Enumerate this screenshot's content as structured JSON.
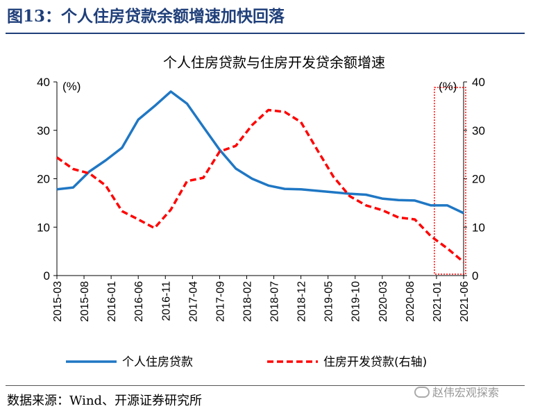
{
  "figure": {
    "title": "图13：个人住房贷款余额增速加快回落",
    "source": "数据来源：Wind、开源证券研究所",
    "watermark": "赵伟宏观探索"
  },
  "chart_data": {
    "type": "line",
    "title": "个人住房贷款与住房开发贷余额增速",
    "left_unit": "(%)",
    "right_unit": "(%)",
    "ylim": [
      0,
      40
    ],
    "y2lim": [
      0,
      40
    ],
    "yticks": [
      "0",
      "10",
      "20",
      "30",
      "40"
    ],
    "x_tick_labels": [
      "2015-03",
      "2015-08",
      "2016-01",
      "2016-06",
      "2016-11",
      "2017-04",
      "2017-09",
      "2018-02",
      "2018-07",
      "2018-12",
      "2019-05",
      "2019-10",
      "2020-03",
      "2020-08",
      "2021-01",
      "2021-06"
    ],
    "x": [
      "2015-03",
      "2015-06",
      "2015-09",
      "2015-12",
      "2016-03",
      "2016-06",
      "2016-09",
      "2016-12",
      "2017-03",
      "2017-06",
      "2017-09",
      "2017-12",
      "2018-03",
      "2018-06",
      "2018-09",
      "2018-12",
      "2019-03",
      "2019-06",
      "2019-09",
      "2019-12",
      "2020-03",
      "2020-06",
      "2020-09",
      "2020-12",
      "2021-03",
      "2021-06"
    ],
    "series": [
      {
        "name": "个人住房贷款",
        "axis": "left",
        "color": "#1f77c4",
        "style": "solid",
        "values": [
          17.8,
          18.2,
          21.5,
          23.8,
          26.4,
          32.2,
          35.0,
          38.0,
          35.5,
          30.7,
          26.0,
          22.1,
          20.0,
          18.6,
          17.9,
          17.8,
          17.5,
          17.2,
          16.9,
          16.7,
          15.9,
          15.6,
          15.5,
          14.5,
          14.5,
          12.9
        ]
      },
      {
        "name": "住房开发贷款(右轴)",
        "axis": "right",
        "color": "#ff0000",
        "style": "dashed",
        "values": [
          24.4,
          22.0,
          21.1,
          18.6,
          13.3,
          11.6,
          9.8,
          13.6,
          19.5,
          20.2,
          25.6,
          26.8,
          31.1,
          34.2,
          33.8,
          31.7,
          26.0,
          20.4,
          16.4,
          14.5,
          13.5,
          12.0,
          11.6,
          8.1,
          5.6,
          2.8
        ]
      }
    ],
    "highlight": {
      "from": "2021-01",
      "to": "2021-06",
      "color": "#ff0000"
    },
    "legend_position": "bottom"
  }
}
